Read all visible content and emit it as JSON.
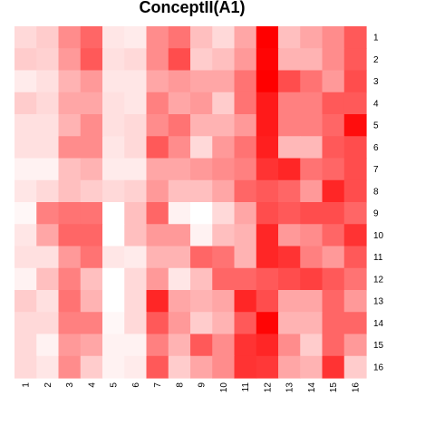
{
  "chart_data": {
    "type": "heatmap",
    "title": "ConceptII(A1)",
    "x_labels": [
      "1",
      "2",
      "3",
      "4",
      "5",
      "6",
      "7",
      "8",
      "9",
      "10",
      "11",
      "12",
      "13",
      "14",
      "15",
      "16"
    ],
    "y_labels": [
      "1",
      "2",
      "3",
      "4",
      "5",
      "6",
      "7",
      "8",
      "9",
      "10",
      "11",
      "12",
      "13",
      "14",
      "15",
      "16"
    ],
    "color_low": "#ffffff",
    "color_high": "#ff0000",
    "value_range": [
      0,
      1
    ],
    "values": [
      [
        0.15,
        0.2,
        0.45,
        0.6,
        0.1,
        0.08,
        0.45,
        0.55,
        0.25,
        0.15,
        0.35,
        1.0,
        0.25,
        0.35,
        0.45,
        0.65
      ],
      [
        0.2,
        0.18,
        0.4,
        0.65,
        0.12,
        0.15,
        0.45,
        0.7,
        0.2,
        0.25,
        0.4,
        0.98,
        0.3,
        0.3,
        0.45,
        0.65
      ],
      [
        0.08,
        0.12,
        0.3,
        0.4,
        0.1,
        0.1,
        0.35,
        0.4,
        0.35,
        0.35,
        0.55,
        1.0,
        0.7,
        0.55,
        0.4,
        0.7
      ],
      [
        0.2,
        0.15,
        0.35,
        0.35,
        0.12,
        0.1,
        0.5,
        0.35,
        0.4,
        0.2,
        0.55,
        0.9,
        0.5,
        0.5,
        0.65,
        0.65
      ],
      [
        0.12,
        0.12,
        0.3,
        0.45,
        0.12,
        0.15,
        0.45,
        0.55,
        0.3,
        0.3,
        0.4,
        0.9,
        0.5,
        0.5,
        0.6,
        0.95
      ],
      [
        0.12,
        0.12,
        0.45,
        0.45,
        0.1,
        0.15,
        0.65,
        0.45,
        0.15,
        0.4,
        0.55,
        0.88,
        0.28,
        0.28,
        0.65,
        0.7
      ],
      [
        0.05,
        0.05,
        0.25,
        0.3,
        0.08,
        0.08,
        0.35,
        0.35,
        0.4,
        0.45,
        0.5,
        0.8,
        0.85,
        0.55,
        0.6,
        0.7
      ],
      [
        0.1,
        0.15,
        0.25,
        0.2,
        0.15,
        0.18,
        0.4,
        0.25,
        0.25,
        0.35,
        0.6,
        0.65,
        0.6,
        0.4,
        0.85,
        0.7
      ],
      [
        0.03,
        0.5,
        0.55,
        0.55,
        0.0,
        0.25,
        0.6,
        0.05,
        0.0,
        0.15,
        0.35,
        0.7,
        0.65,
        0.7,
        0.7,
        0.6
      ],
      [
        0.1,
        0.35,
        0.6,
        0.6,
        0.0,
        0.25,
        0.4,
        0.4,
        0.05,
        0.25,
        0.3,
        0.85,
        0.4,
        0.45,
        0.6,
        0.8
      ],
      [
        0.12,
        0.12,
        0.4,
        0.55,
        0.1,
        0.08,
        0.3,
        0.3,
        0.6,
        0.55,
        0.3,
        0.85,
        0.8,
        0.5,
        0.4,
        0.65
      ],
      [
        0.05,
        0.25,
        0.5,
        0.25,
        0.0,
        0.15,
        0.4,
        0.1,
        0.25,
        0.6,
        0.6,
        0.65,
        0.7,
        0.75,
        0.65,
        0.55
      ],
      [
        0.2,
        0.12,
        0.55,
        0.3,
        0.0,
        0.15,
        0.85,
        0.35,
        0.3,
        0.35,
        0.85,
        0.7,
        0.35,
        0.35,
        0.6,
        0.4
      ],
      [
        0.15,
        0.15,
        0.5,
        0.5,
        0.03,
        0.15,
        0.65,
        0.4,
        0.2,
        0.3,
        0.65,
        0.98,
        0.3,
        0.3,
        0.6,
        0.6
      ],
      [
        0.15,
        0.05,
        0.4,
        0.35,
        0.05,
        0.05,
        0.5,
        0.3,
        0.65,
        0.45,
        0.8,
        0.85,
        0.45,
        0.2,
        0.6,
        0.4
      ],
      [
        0.15,
        0.1,
        0.45,
        0.2,
        0.05,
        0.08,
        0.65,
        0.2,
        0.35,
        0.45,
        0.8,
        0.78,
        0.35,
        0.3,
        0.8,
        0.2
      ]
    ]
  }
}
